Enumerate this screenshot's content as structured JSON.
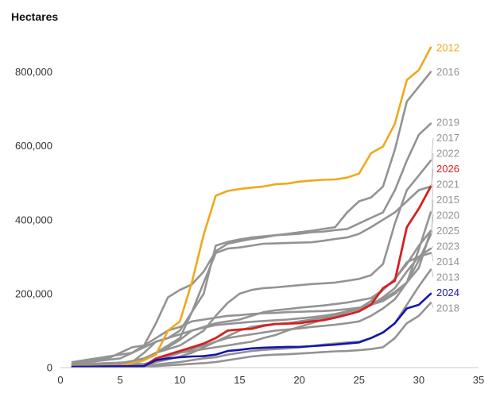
{
  "chart_data": {
    "type": "line",
    "title": "",
    "xlabel": "",
    "ylabel": "Hectares",
    "xlim": [
      0,
      35
    ],
    "ylim": [
      0,
      900000
    ],
    "x_ticks": [
      "0",
      "5",
      "10",
      "15",
      "20",
      "25",
      "30",
      "35"
    ],
    "y_ticks": [
      "0",
      "200,000",
      "400,000",
      "600,000",
      "800,000"
    ],
    "grid": false,
    "legend": "series labels at line ends (right)",
    "series": [
      {
        "name": "2012",
        "color": "#f0a81c",
        "width": 2.6,
        "x": [
          1,
          5,
          6,
          7,
          8,
          9,
          10,
          11,
          12,
          13,
          14,
          15,
          16,
          17,
          18,
          19,
          20,
          21,
          22,
          23,
          24,
          25,
          26,
          27,
          28,
          29,
          30,
          31
        ],
        "y": [
          3000,
          5000,
          12000,
          20000,
          35000,
          100000,
          125000,
          230000,
          360000,
          465000,
          478000,
          483000,
          487000,
          490000,
          496000,
          498000,
          503000,
          506000,
          508000,
          509000,
          514000,
          525000,
          580000,
          598000,
          660000,
          778000,
          805000,
          866000
        ]
      },
      {
        "name": "2022",
        "color": "#939393",
        "width": 2.6,
        "x": [
          1,
          6,
          7,
          8,
          9,
          10,
          11,
          12,
          13,
          14,
          15,
          16,
          17,
          18,
          19,
          20,
          21,
          22,
          23,
          24,
          25,
          26,
          27,
          28,
          29,
          30,
          31
        ],
        "y": [
          5000,
          10000,
          20000,
          40000,
          60000,
          80000,
          150000,
          230000,
          310000,
          322000,
          325000,
          330000,
          335000,
          336000,
          337000,
          338000,
          339000,
          343000,
          348000,
          352000,
          362000,
          380000,
          400000,
          420000,
          450000,
          480000,
          490000
        ]
      },
      {
        "name": "2017",
        "color": "#939393",
        "width": 2.6,
        "x": [
          1,
          5,
          6,
          7,
          8,
          9,
          10,
          11,
          12,
          13,
          14,
          15,
          16,
          17,
          18,
          19,
          20,
          21,
          22,
          23,
          24,
          25,
          26,
          27,
          28,
          29,
          30,
          31
        ],
        "y": [
          5000,
          8000,
          12000,
          20000,
          40000,
          50000,
          60000,
          80000,
          100000,
          140000,
          175000,
          200000,
          210000,
          215000,
          217000,
          220000,
          223000,
          226000,
          228000,
          230000,
          235000,
          240000,
          250000,
          280000,
          390000,
          480000,
          520000,
          560000
        ]
      },
      {
        "name": "2026",
        "color": "#d71f1f",
        "width": 2.8,
        "x": [
          1,
          7,
          8,
          9,
          10,
          11,
          12,
          13,
          14,
          15,
          16,
          17,
          18,
          19,
          20,
          21,
          22,
          23,
          24,
          25,
          26,
          27,
          28,
          29,
          30,
          31
        ],
        "y": [
          2000,
          4000,
          25000,
          35000,
          45000,
          55000,
          65000,
          80000,
          100000,
          103000,
          105000,
          113000,
          118000,
          119000,
          120000,
          125000,
          128000,
          135000,
          143000,
          152000,
          170000,
          215000,
          235000,
          380000,
          430000,
          490000
        ]
      },
      {
        "name": "2019",
        "color": "#939393",
        "width": 2.6,
        "x": [
          1,
          6,
          7,
          8,
          9,
          10,
          11,
          12,
          13,
          14,
          15,
          16,
          17,
          18,
          19,
          20,
          21,
          22,
          23,
          24,
          25,
          26,
          27,
          28,
          29,
          30,
          31
        ],
        "y": [
          8000,
          15000,
          40000,
          70000,
          80000,
          100000,
          150000,
          200000,
          330000,
          340000,
          347000,
          352000,
          355000,
          358000,
          360000,
          362000,
          366000,
          368000,
          372000,
          375000,
          390000,
          405000,
          420000,
          480000,
          560000,
          630000,
          660000
        ]
      },
      {
        "name": "2015",
        "color": "#939393",
        "width": 2.6,
        "x": [
          1,
          5,
          6,
          7,
          8,
          9,
          10,
          11,
          12,
          13,
          14,
          15,
          16,
          17,
          18,
          19,
          20,
          21,
          22,
          23,
          24,
          25,
          26,
          27,
          28,
          29,
          30,
          31
        ],
        "y": [
          10000,
          12000,
          18000,
          25000,
          40000,
          55000,
          75000,
          100000,
          110000,
          120000,
          125000,
          130000,
          140000,
          150000,
          155000,
          158000,
          162000,
          165000,
          168000,
          172000,
          176000,
          182000,
          188000,
          210000,
          240000,
          280000,
          330000,
          370000
        ]
      },
      {
        "name": "2021",
        "color": "#939393",
        "width": 2.6,
        "x": [
          1,
          4,
          5,
          6,
          7,
          8,
          9,
          10,
          11,
          12,
          13,
          14,
          15,
          16,
          17,
          18,
          19,
          20,
          21,
          22,
          23,
          24,
          25,
          26,
          27,
          28,
          29,
          30,
          31
        ],
        "y": [
          10000,
          25000,
          40000,
          55000,
          60000,
          80000,
          100000,
          110000,
          125000,
          130000,
          135000,
          140000,
          142000,
          145000,
          147000,
          148000,
          150000,
          151000,
          152000,
          153000,
          155000,
          158000,
          162000,
          170000,
          180000,
          200000,
          230000,
          320000,
          420000
        ]
      },
      {
        "name": "2016",
        "color": "#939393",
        "width": 2.6,
        "x": [
          1,
          5,
          6,
          7,
          8,
          9,
          10,
          11,
          12,
          13,
          14,
          15,
          16,
          17,
          18,
          19,
          20,
          21,
          22,
          23,
          24,
          25,
          26,
          27,
          28,
          29,
          30,
          31
        ],
        "y": [
          10000,
          25000,
          40000,
          60000,
          120000,
          190000,
          210000,
          225000,
          260000,
          315000,
          335000,
          342000,
          348000,
          352000,
          358000,
          362000,
          366000,
          370000,
          375000,
          380000,
          420000,
          450000,
          460000,
          490000,
          590000,
          720000,
          760000,
          800000
        ]
      },
      {
        "name": "2020",
        "color": "#939393",
        "width": 2.6,
        "x": [
          1,
          4,
          5,
          6,
          7,
          8,
          9,
          10,
          11,
          12,
          13,
          14,
          15,
          16,
          17,
          18,
          19,
          20,
          21,
          22,
          23,
          24,
          25,
          26,
          27,
          28,
          29,
          30,
          31
        ],
        "y": [
          15000,
          30000,
          35000,
          40000,
          55000,
          70000,
          80000,
          90000,
          100000,
          108000,
          115000,
          118000,
          121000,
          124000,
          126000,
          128000,
          130000,
          133000,
          136000,
          140000,
          145000,
          152000,
          160000,
          172000,
          185000,
          205000,
          230000,
          270000,
          370000
        ]
      },
      {
        "name": "2025",
        "color": "#939393",
        "width": 2.6,
        "x": [
          1,
          7,
          8,
          9,
          10,
          11,
          12,
          13,
          14,
          15,
          16,
          17,
          18,
          19,
          20,
          21,
          22,
          23,
          24,
          25,
          26,
          27,
          28,
          29,
          30,
          31
        ],
        "y": [
          5000,
          10000,
          15000,
          22000,
          30000,
          40000,
          55000,
          70000,
          80000,
          85000,
          90000,
          95000,
          100000,
          103000,
          106000,
          110000,
          113000,
          116000,
          120000,
          125000,
          140000,
          160000,
          185000,
          230000,
          290000,
          360000
        ]
      },
      {
        "name": "2023",
        "color": "#939393",
        "width": 2.6,
        "x": [
          1,
          7,
          8,
          9,
          10,
          11,
          12,
          13,
          14,
          15,
          16,
          17,
          18,
          19,
          20,
          21,
          22,
          23,
          24,
          25,
          26,
          27,
          28,
          29,
          30,
          31
        ],
        "y": [
          3000,
          8000,
          20000,
          30000,
          40000,
          50000,
          60000,
          70000,
          85000,
          100000,
          110000,
          115000,
          118000,
          120000,
          125000,
          130000,
          135000,
          142000,
          150000,
          158000,
          170000,
          190000,
          215000,
          260000,
          300000,
          322000
        ]
      },
      {
        "name": "2014",
        "color": "#939393",
        "width": 2.6,
        "x": [
          1,
          7,
          8,
          9,
          10,
          11,
          12,
          13,
          14,
          15,
          16,
          17,
          18,
          19,
          20,
          21,
          22,
          23,
          24,
          25,
          26,
          27,
          28,
          29,
          30,
          31
        ],
        "y": [
          3000,
          5000,
          15000,
          30000,
          40000,
          45000,
          50000,
          55000,
          60000,
          65000,
          70000,
          80000,
          88000,
          100000,
          110000,
          120000,
          130000,
          140000,
          150000,
          160000,
          180000,
          210000,
          240000,
          285000,
          300000,
          310000
        ]
      },
      {
        "name": "2013",
        "color": "#939393",
        "width": 2.6,
        "x": [
          1,
          7,
          8,
          9,
          10,
          11,
          12,
          13,
          14,
          15,
          16,
          17,
          18,
          19,
          20,
          21,
          22,
          23,
          24,
          25,
          26,
          27,
          28,
          29,
          30,
          31
        ],
        "y": [
          2000,
          4000,
          8000,
          12000,
          15000,
          20000,
          25000,
          28000,
          35000,
          40000,
          45000,
          48000,
          50000,
          52000,
          55000,
          58000,
          62000,
          65000,
          68000,
          70000,
          80000,
          95000,
          120000,
          170000,
          220000,
          265000
        ]
      },
      {
        "name": "2024",
        "color": "#1515b0",
        "width": 2.6,
        "x": [
          1,
          7,
          8,
          9,
          10,
          11,
          12,
          13,
          14,
          15,
          16,
          17,
          18,
          19,
          20,
          21,
          22,
          23,
          24,
          25,
          26,
          27,
          28,
          29,
          30,
          31
        ],
        "y": [
          2000,
          4000,
          20000,
          25000,
          28000,
          30000,
          31000,
          35000,
          45000,
          48000,
          52000,
          54000,
          55000,
          56000,
          56000,
          58000,
          60000,
          62000,
          65000,
          68000,
          80000,
          95000,
          120000,
          160000,
          170000,
          200000
        ]
      },
      {
        "name": "2018",
        "color": "#939393",
        "width": 2.6,
        "x": [
          1,
          7,
          8,
          9,
          10,
          11,
          12,
          13,
          14,
          15,
          16,
          17,
          18,
          19,
          20,
          21,
          22,
          23,
          24,
          25,
          26,
          27,
          28,
          29,
          30,
          31
        ],
        "y": [
          2000,
          3000,
          4000,
          6000,
          8000,
          10000,
          12000,
          15000,
          20000,
          25000,
          30000,
          33000,
          35000,
          36000,
          38000,
          40000,
          42000,
          44000,
          45000,
          47000,
          50000,
          55000,
          80000,
          120000,
          140000,
          175000
        ]
      }
    ],
    "end_labels": [
      {
        "series": "2012",
        "text": "2012",
        "color": "#f0a81c"
      },
      {
        "series": "2022",
        "text": "2022",
        "color": "#939393"
      },
      {
        "series": "2017",
        "text": "2017",
        "color": "#939393"
      },
      {
        "series": "2026",
        "text": "2026",
        "color": "#d71f1f"
      },
      {
        "series": "2019",
        "text": "2019",
        "color": "#939393"
      },
      {
        "series": "2015",
        "text": "2015",
        "color": "#939393"
      },
      {
        "series": "2021",
        "text": "2021",
        "color": "#939393"
      },
      {
        "series": "2016",
        "text": "2016",
        "color": "#939393"
      },
      {
        "series": "2020",
        "text": "2020",
        "color": "#939393"
      },
      {
        "series": "2025",
        "text": "2025",
        "color": "#939393"
      },
      {
        "series": "2023",
        "text": "2023",
        "color": "#939393"
      },
      {
        "series": "2014",
        "text": "2014",
        "color": "#939393"
      },
      {
        "series": "2013",
        "text": "2013",
        "color": "#939393"
      },
      {
        "series": "2024",
        "text": "2024",
        "color": "#1515b0"
      },
      {
        "series": "2018",
        "text": "2018",
        "color": "#939393"
      }
    ]
  }
}
